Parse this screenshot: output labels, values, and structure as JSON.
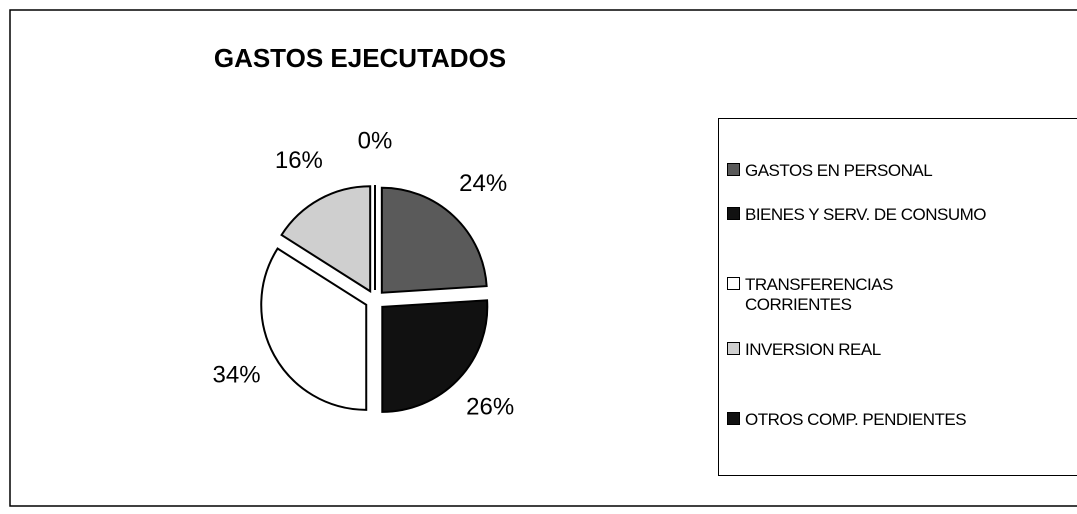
{
  "chart_data": {
    "type": "pie",
    "title": "GASTOS EJECUTADOS",
    "categories": [
      "GASTOS EN PERSONAL",
      "BIENES Y SERV. DE CONSUMO",
      "TRANSFERENCIAS CORRIENTES",
      "INVERSION REAL",
      "OTROS COMP. PENDIENTES"
    ],
    "values": [
      24,
      26,
      34,
      16,
      0
    ],
    "value_labels": [
      "24%",
      "26%",
      "34%",
      "16%",
      "0%"
    ],
    "colors": [
      "#5a5a5a",
      "#111111",
      "#ffffff",
      "#cfcfcf",
      "#111111"
    ],
    "legend": "right"
  }
}
